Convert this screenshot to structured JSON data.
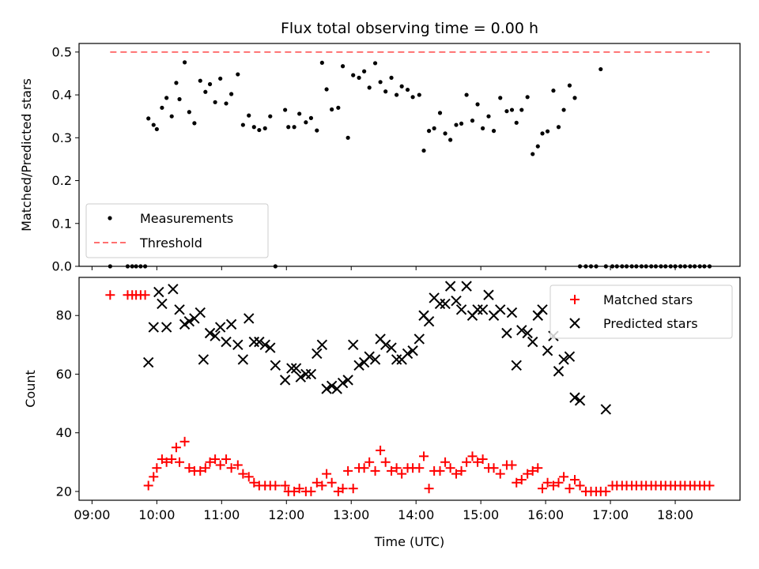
{
  "chart_data": [
    {
      "type": "scatter",
      "title": "Flux total observing time = 0.00 h",
      "ylabel": "Matched/Predicted stars",
      "xlim": [
        8.8,
        19.0
      ],
      "ylim": [
        0.0,
        0.52
      ],
      "yticks": [
        0.0,
        0.1,
        0.2,
        0.3,
        0.4,
        0.5
      ],
      "ytick_labels": [
        "0.0",
        "0.1",
        "0.2",
        "0.3",
        "0.4",
        "0.5"
      ],
      "xticks": [
        9,
        10,
        11,
        12,
        13,
        14,
        15,
        16,
        17,
        18
      ],
      "legend_position": "lower-left",
      "series": [
        {
          "name": "Measurements",
          "marker": "dot",
          "color": "#000000",
          "x": [
            9.28,
            9.55,
            9.62,
            9.68,
            9.75,
            9.82,
            9.87,
            9.95,
            10.0,
            10.08,
            10.15,
            10.23,
            10.3,
            10.35,
            10.43,
            10.5,
            10.58,
            10.67,
            10.75,
            10.82,
            10.9,
            10.98,
            11.07,
            11.15,
            11.25,
            11.33,
            11.42,
            11.5,
            11.58,
            11.67,
            11.75,
            11.83,
            11.98,
            12.03,
            12.12,
            12.2,
            12.3,
            12.38,
            12.47,
            12.55,
            12.62,
            12.7,
            12.8,
            12.87,
            12.95,
            13.03,
            13.12,
            13.2,
            13.28,
            13.37,
            13.45,
            13.53,
            13.62,
            13.7,
            13.78,
            13.87,
            13.95,
            14.05,
            14.12,
            14.2,
            14.28,
            14.37,
            14.45,
            14.53,
            14.62,
            14.7,
            14.78,
            14.87,
            14.95,
            15.03,
            15.12,
            15.2,
            15.3,
            15.4,
            15.48,
            15.55,
            15.63,
            15.72,
            15.8,
            15.88,
            15.95,
            16.03,
            16.12,
            16.2,
            16.28,
            16.37,
            16.45,
            16.53,
            16.62,
            16.7,
            16.78,
            16.85,
            16.93,
            17.03,
            17.1,
            17.18,
            17.25,
            17.33,
            17.4,
            17.48,
            17.55,
            17.63,
            17.7,
            17.78,
            17.85,
            17.93,
            18.0,
            18.08,
            18.15,
            18.23,
            18.3,
            18.38,
            18.45,
            18.53
          ],
          "y": [
            0.0,
            0.0,
            0.0,
            0.0,
            0.0,
            0.0,
            0.345,
            0.33,
            0.32,
            0.37,
            0.393,
            0.35,
            0.428,
            0.39,
            0.476,
            0.36,
            0.334,
            0.433,
            0.407,
            0.425,
            0.383,
            0.438,
            0.38,
            0.402,
            0.448,
            0.33,
            0.352,
            0.325,
            0.318,
            0.322,
            0.35,
            0.0,
            0.365,
            0.325,
            0.325,
            0.356,
            0.336,
            0.346,
            0.317,
            0.475,
            0.413,
            0.366,
            0.37,
            0.467,
            0.3,
            0.446,
            0.44,
            0.455,
            0.417,
            0.474,
            0.43,
            0.408,
            0.44,
            0.4,
            0.42,
            0.412,
            0.395,
            0.4,
            0.27,
            0.316,
            0.322,
            0.358,
            0.31,
            0.295,
            0.33,
            0.333,
            0.4,
            0.34,
            0.378,
            0.322,
            0.35,
            0.316,
            0.393,
            0.362,
            0.365,
            0.335,
            0.365,
            0.395,
            0.262,
            0.28,
            0.31,
            0.315,
            0.41,
            0.325,
            0.365,
            0.422,
            0.393,
            0.0,
            0.0,
            0.0,
            0.0,
            0.46,
            0.0,
            0.0,
            0.0,
            0.0,
            0.0,
            0.0,
            0.0,
            0.0,
            0.0,
            0.0,
            0.0,
            0.0,
            0.0,
            0.0,
            0.0,
            0.0,
            0.0,
            0.0,
            0.0,
            0.0,
            0.0,
            0.0
          ]
        },
        {
          "name": "Threshold",
          "marker": "dashed-line",
          "color": "#ff7070",
          "x": [
            9.28,
            18.53
          ],
          "y": [
            0.5,
            0.5
          ]
        }
      ]
    },
    {
      "type": "scatter",
      "xlabel": "Time (UTC)",
      "ylabel": "Count",
      "xlim": [
        8.8,
        19.0
      ],
      "ylim": [
        17,
        93
      ],
      "yticks": [
        20,
        40,
        60,
        80
      ],
      "ytick_labels": [
        "20",
        "40",
        "60",
        "80"
      ],
      "xticks": [
        9,
        10,
        11,
        12,
        13,
        14,
        15,
        16,
        17,
        18
      ],
      "xtick_labels": [
        "09:00",
        "10:00",
        "11:00",
        "12:00",
        "13:00",
        "14:00",
        "15:00",
        "16:00",
        "17:00",
        "18:00"
      ],
      "legend_position": "upper-right",
      "series": [
        {
          "name": "Matched stars",
          "marker": "plus",
          "color": "#ff0000",
          "x": [
            9.28,
            9.55,
            9.62,
            9.68,
            9.75,
            9.82,
            9.87,
            9.95,
            10.0,
            10.08,
            10.15,
            10.23,
            10.3,
            10.35,
            10.43,
            10.5,
            10.58,
            10.67,
            10.75,
            10.82,
            10.9,
            10.98,
            11.07,
            11.15,
            11.25,
            11.33,
            11.42,
            11.5,
            11.58,
            11.67,
            11.75,
            11.83,
            11.98,
            12.03,
            12.12,
            12.2,
            12.3,
            12.38,
            12.47,
            12.55,
            12.62,
            12.7,
            12.8,
            12.87,
            12.95,
            13.03,
            13.12,
            13.2,
            13.28,
            13.37,
            13.45,
            13.53,
            13.62,
            13.7,
            13.78,
            13.87,
            13.95,
            14.05,
            14.12,
            14.2,
            14.28,
            14.37,
            14.45,
            14.53,
            14.62,
            14.7,
            14.78,
            14.87,
            14.95,
            15.03,
            15.12,
            15.2,
            15.3,
            15.4,
            15.48,
            15.55,
            15.63,
            15.72,
            15.8,
            15.88,
            15.95,
            16.03,
            16.12,
            16.2,
            16.28,
            16.37,
            16.45,
            16.53,
            16.62,
            16.7,
            16.78,
            16.85,
            16.93,
            17.03,
            17.1,
            17.18,
            17.25,
            17.33,
            17.4,
            17.48,
            17.55,
            17.63,
            17.7,
            17.78,
            17.85,
            17.93,
            18.0,
            18.08,
            18.15,
            18.23,
            18.3,
            18.38,
            18.45,
            18.53
          ],
          "y": [
            87,
            87,
            87,
            87,
            87,
            87,
            22,
            25,
            28,
            31,
            30,
            31,
            35,
            30,
            37,
            28,
            27,
            27,
            28,
            30,
            31,
            29,
            31,
            28,
            29,
            26,
            25,
            23,
            22,
            22,
            22,
            22,
            22,
            20,
            20,
            21,
            20,
            20,
            23,
            22,
            26,
            23,
            20,
            21,
            27,
            21,
            28,
            28,
            30,
            27,
            34,
            30,
            27,
            28,
            26,
            28,
            28,
            28,
            32,
            21,
            27,
            27,
            30,
            28,
            26,
            27,
            30,
            32,
            30,
            31,
            28,
            28,
            26,
            29,
            29,
            23,
            24,
            26,
            27,
            28,
            21,
            23,
            22,
            23,
            25,
            21,
            24,
            22,
            20,
            20,
            20,
            20,
            20,
            22,
            22,
            22,
            22,
            22,
            22,
            22,
            22,
            22,
            22,
            22,
            22,
            22,
            22,
            22,
            22,
            22,
            22,
            22,
            22,
            22
          ]
        },
        {
          "name": "Predicted stars",
          "marker": "x",
          "color": "#000000",
          "x": [
            9.87,
            9.95,
            10.03,
            10.08,
            10.15,
            10.25,
            10.35,
            10.43,
            10.5,
            10.58,
            10.67,
            10.72,
            10.82,
            10.9,
            10.98,
            11.07,
            11.15,
            11.25,
            11.33,
            11.42,
            11.5,
            11.58,
            11.67,
            11.75,
            11.83,
            11.98,
            12.08,
            12.15,
            12.22,
            12.3,
            12.38,
            12.47,
            12.55,
            12.62,
            12.7,
            12.78,
            12.87,
            12.95,
            13.03,
            13.12,
            13.2,
            13.28,
            13.37,
            13.45,
            13.53,
            13.62,
            13.7,
            13.78,
            13.87,
            13.95,
            14.05,
            14.12,
            14.2,
            14.28,
            14.37,
            14.45,
            14.53,
            14.62,
            14.7,
            14.78,
            14.87,
            14.95,
            15.03,
            15.12,
            15.2,
            15.3,
            15.4,
            15.48,
            15.55,
            15.63,
            15.72,
            15.8,
            15.88,
            15.95,
            16.03,
            16.12,
            16.2,
            16.28,
            16.37,
            16.45,
            16.53,
            16.93
          ],
          "y": [
            64,
            76,
            88,
            84,
            76,
            89,
            82,
            77,
            78,
            79,
            81,
            65,
            74,
            73,
            76,
            71,
            77,
            70,
            65,
            79,
            71,
            71,
            70,
            69,
            63,
            58,
            62,
            62,
            59,
            60,
            60,
            67,
            70,
            55,
            56,
            55,
            57,
            58,
            70,
            63,
            64,
            66,
            65,
            72,
            70,
            69,
            65,
            65,
            67,
            68,
            72,
            80,
            78,
            86,
            84,
            84,
            90,
            85,
            82,
            90,
            80,
            82,
            82,
            87,
            80,
            82,
            74,
            81,
            63,
            75,
            74,
            71,
            80,
            82,
            68,
            73,
            61,
            65,
            66,
            52,
            51,
            48
          ]
        }
      ]
    }
  ]
}
